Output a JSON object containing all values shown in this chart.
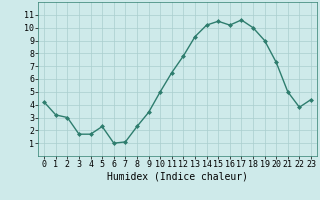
{
  "x": [
    0,
    1,
    2,
    3,
    4,
    5,
    6,
    7,
    8,
    9,
    10,
    11,
    12,
    13,
    14,
    15,
    16,
    17,
    18,
    19,
    20,
    21,
    22,
    23
  ],
  "y": [
    4.2,
    3.2,
    3.0,
    1.7,
    1.7,
    2.3,
    1.0,
    1.1,
    2.3,
    3.4,
    5.0,
    6.5,
    7.8,
    9.3,
    10.2,
    10.5,
    10.2,
    10.6,
    10.0,
    9.0,
    7.3,
    5.0,
    3.8,
    4.4
  ],
  "line_color": "#2e7d6e",
  "marker": "D",
  "marker_size": 2.0,
  "bg_color": "#ceeaea",
  "grid_color": "#aacece",
  "xlabel": "Humidex (Indice chaleur)",
  "ylim": [
    0,
    12
  ],
  "xlim": [
    -0.5,
    23.5
  ],
  "yticks": [
    1,
    2,
    3,
    4,
    5,
    6,
    7,
    8,
    9,
    10,
    11
  ],
  "xticks": [
    0,
    1,
    2,
    3,
    4,
    5,
    6,
    7,
    8,
    9,
    10,
    11,
    12,
    13,
    14,
    15,
    16,
    17,
    18,
    19,
    20,
    21,
    22,
    23
  ],
  "xlabel_fontsize": 7,
  "tick_fontsize": 6,
  "line_width": 1.0
}
